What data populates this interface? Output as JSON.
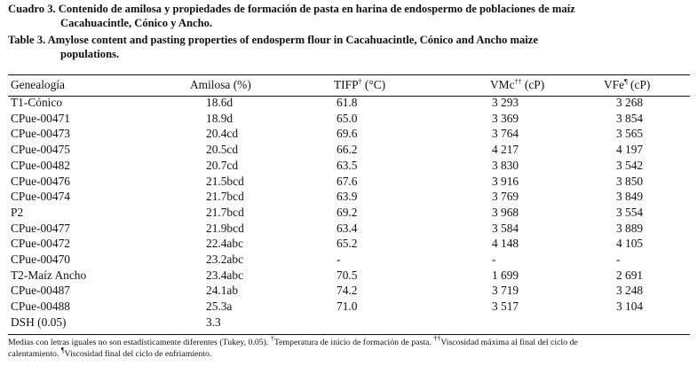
{
  "caption": {
    "es_line1": "Cuadro 3. Contenido de amilosa y propiedades de formación de pasta en harina de endospermo de poblaciones de maíz",
    "es_line2": "Cacahuacintle, Cónico y Ancho.",
    "en_line1": "Table 3. Amylose content and pasting properties of endosperm flour in Cacahuacintle, Cónico and Ancho maize",
    "en_line2": "populations."
  },
  "table": {
    "headers": {
      "genealogia": "Genealogía",
      "amilosa": "Amilosa (%)",
      "tifp": "TIFP",
      "tifp_sup": "†",
      "tifp_unit": " (°C)",
      "vmc": "VMc",
      "vmc_sup": "††",
      "vmc_unit": " (cP)",
      "vfe": "VFe",
      "vfe_sup": "¶",
      "vfe_unit": " (cP)"
    },
    "rows": [
      {
        "gen": "T1-Cónico",
        "amilosa": "18.6d",
        "tifp": "61.8",
        "vmc": "3 293",
        "vfe": "3 268"
      },
      {
        "gen": "CPue-00471",
        "amilosa": "18.9d",
        "tifp": "65.0",
        "vmc": "3 369",
        "vfe": "3 854"
      },
      {
        "gen": "CPue-00473",
        "amilosa": "20.4cd",
        "tifp": "69.6",
        "vmc": "3 764",
        "vfe": "3 565"
      },
      {
        "gen": "CPue-00475",
        "amilosa": "20.5cd",
        "tifp": "66.2",
        "vmc": "4 217",
        "vfe": "4 197"
      },
      {
        "gen": "CPue-00482",
        "amilosa": "20.7cd",
        "tifp": "63.5",
        "vmc": "3 830",
        "vfe": "3 542"
      },
      {
        "gen": "CPue-00476",
        "amilosa": "21.5bcd",
        "tifp": "67.6",
        "vmc": "3 916",
        "vfe": "3 850"
      },
      {
        "gen": "CPue-00474",
        "amilosa": "21.7bcd",
        "tifp": "63.9",
        "vmc": "3 769",
        "vfe": "3 849"
      },
      {
        "gen": "P2",
        "amilosa": "21.7bcd",
        "tifp": "69.2",
        "vmc": "3 968",
        "vfe": "3 554"
      },
      {
        "gen": "CPue-00477",
        "amilosa": "21.9bcd",
        "tifp": "63.4",
        "vmc": "3 584",
        "vfe": "3 889"
      },
      {
        "gen": "CPue-00472",
        "amilosa": "22.4abc",
        "tifp": "65.2",
        "vmc": "4 148",
        "vfe": "4 105"
      },
      {
        "gen": "CPue-00470",
        "amilosa": "23.2abc",
        "tifp": "-",
        "vmc": "-",
        "vfe": "-"
      },
      {
        "gen": "T2-Maíz Ancho",
        "amilosa": "23.4abc",
        "tifp": "70.5",
        "vmc": "1 699",
        "vfe": "2 691"
      },
      {
        "gen": "CPue-00487",
        "amilosa": "24.1ab",
        "tifp": "74.2",
        "vmc": "3 719",
        "vfe": "3 248"
      },
      {
        "gen": "CPue-00488",
        "amilosa": "25.3a",
        "tifp": "71.0",
        "vmc": "3 517",
        "vfe": "3 104"
      },
      {
        "gen": "DSH (0.05)",
        "amilosa": "3.3",
        "tifp": "",
        "vmc": "",
        "vfe": ""
      }
    ]
  },
  "footnote": {
    "line1_a": "Medias con letras iguales no son estadísticamente diferentes (Tukey, 0.05). ",
    "sup1": "†",
    "line1_b": "Temperatura de inicio de formación de pasta. ",
    "sup2": "††",
    "line1_c": "Viscosidad máxima al final del ciclo de",
    "line2_a": "calentamiento. ",
    "sup3": "¶",
    "line2_b": "Viscosidad final del ciclo de enfriamiento."
  }
}
